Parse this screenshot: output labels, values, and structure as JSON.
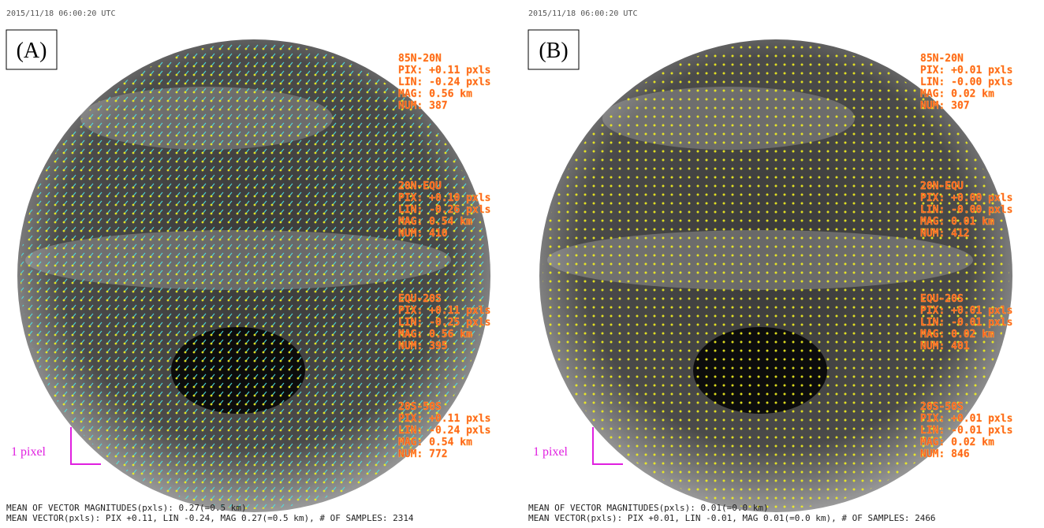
{
  "panels": [
    {
      "label": "(A)",
      "timestamp": "2015/11/18 06:00:20 UTC",
      "scale_label": "1 pixel",
      "regions": [
        {
          "name": "85N-20N",
          "lines": [
            "PIX: +0.11 pxls",
            "LIN: -0.24 pxls",
            "MAG: 0.56 km",
            "NUM: 387"
          ]
        },
        {
          "name": "20N-EQU",
          "lines": [
            "PIX: +0.10 pxls",
            "LIN: -0.26 pxls",
            "MAG: 0.54 km",
            "NUM: 410"
          ]
        },
        {
          "name": "EQU-20S",
          "lines": [
            "PIX: +0.11 pxls",
            "LIN: -0.25 pxls",
            "MAG: 0.56 km",
            "NUM: 395"
          ]
        },
        {
          "name": "20S-50S",
          "lines": [
            "PIX: +0.11 pxls",
            "LIN: -0.24 pxls",
            "MAG: 0.54 km",
            "NUM: 772"
          ]
        }
      ],
      "footer": [
        "MEAN OF VECTOR MAGNITUDES(pxls): 0.27(=0.5 km)",
        "MEAN VECTOR(pxls): PIX +0.11, LIN -0.24, MAG 0.27(=0.5 km), # OF SAMPLES: 2314"
      ]
    },
    {
      "label": "(B)",
      "timestamp": "2015/11/18 06:00:20 UTC",
      "scale_label": "1 pixel",
      "regions": [
        {
          "name": "85N-20N",
          "lines": [
            "PIX: +0.01 pxls",
            "LIN: -0.00 pxls",
            "MAG: 0.02 km",
            "NUM: 307"
          ]
        },
        {
          "name": "20N-EQU",
          "lines": [
            "PIX: +0.00 pxls",
            "LIN: -0.00 pxls",
            "MAG: 0.01 km",
            "NUM: 412"
          ]
        },
        {
          "name": "EQU-20S",
          "lines": [
            "PIX: +0.01 pxls",
            "LIN: -0.01 pxls",
            "MAG: 0.02 km",
            "NUM: 401"
          ]
        },
        {
          "name": "20S-50S",
          "lines": [
            "PIX: +0.01 pxls",
            "LIN: -0.01 pxls",
            "MAG: 0.02 km",
            "NUM: 846"
          ]
        }
      ],
      "footer": [
        "MEAN OF VECTOR MAGNITUDES(pxls): 0.01(=0.0 km)",
        "MEAN VECTOR(pxls): PIX +0.01, LIN -0.01, MAG 0.01(=0.0 km), # OF SAMPLES: 2466"
      ]
    }
  ]
}
